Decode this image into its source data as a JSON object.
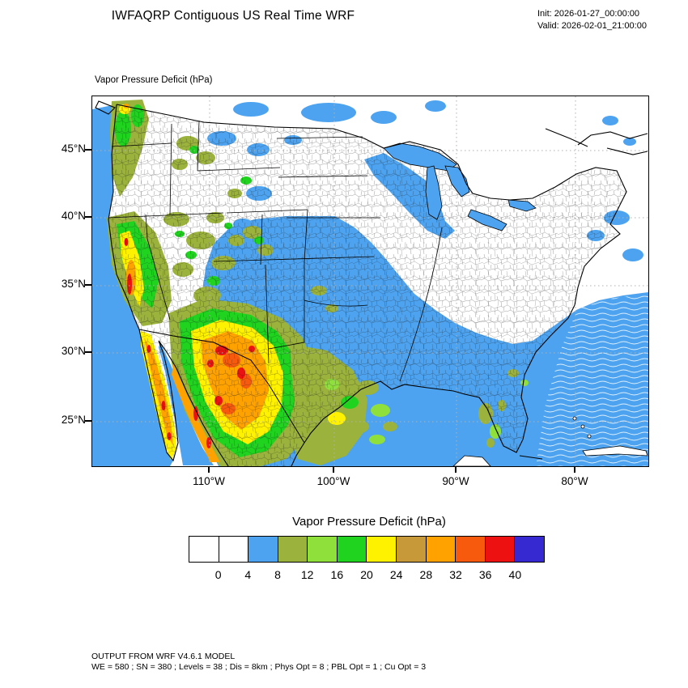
{
  "header": {
    "title": "IWFAQRP Contiguous US Real Time WRF",
    "init_line": "Init: 2026-01-27_00:00:00",
    "valid_line": "Valid: 2026-02-01_21:00:00"
  },
  "map": {
    "field_label": "Vapor Pressure Deficit   (hPa)",
    "lat_ticks": [
      "45°N",
      "40°N",
      "35°N",
      "30°N",
      "25°N"
    ],
    "lon_ticks": [
      "110°W",
      "100°W",
      "90°W",
      "80°W"
    ]
  },
  "colorbar": {
    "title": "Vapor Pressure Deficit  (hPa)",
    "tick_labels": [
      "0",
      "4",
      "8",
      "12",
      "16",
      "20",
      "24",
      "28",
      "32",
      "36",
      "40"
    ],
    "colors": [
      "#ffffff",
      "#ffffff",
      "#4da3f0",
      "#9bb23c",
      "#90e03c",
      "#1fd31f",
      "#fff200",
      "#c79939",
      "#ffa200",
      "#f85a0d",
      "#ee1111",
      "#3629d1"
    ]
  },
  "footer": {
    "line1": "OUTPUT FROM WRF V4.6.1 MODEL",
    "line2": "WE = 580 ; SN = 380 ; Levels = 38 ; Dis = 8km ; Phys Opt = 8 ; PBL Opt = 1 ; Cu Opt = 3"
  },
  "chart_data": {
    "type": "heatmap",
    "title": "IWFAQRP Contiguous US Real Time WRF",
    "field": "Vapor Pressure Deficit",
    "units": "hPa",
    "init_time": "2026-01-27_00:00:00",
    "valid_time": "2026-02-01_21:00:00",
    "x": {
      "label": "longitude",
      "ticks": [
        "110°W",
        "100°W",
        "90°W",
        "80°W"
      ]
    },
    "y": {
      "label": "latitude",
      "ticks": [
        "45°N",
        "40°N",
        "35°N",
        "30°N",
        "25°N"
      ]
    },
    "levels_hpa": [
      0,
      4,
      8,
      12,
      16,
      20,
      24,
      28,
      32,
      36,
      40
    ],
    "palette": [
      "#ffffff",
      "#ffffff",
      "#4da3f0",
      "#9bb23c",
      "#90e03c",
      "#1fd31f",
      "#fff200",
      "#c79939",
      "#ffa200",
      "#f85a0d",
      "#ee1111",
      "#3629d1"
    ],
    "legend_position": "bottom",
    "grid": "dotted gray graticule",
    "basemap": "Contiguous US with county boundaries, northern Mexico, southern Canada",
    "regions_approx": [
      {
        "region": "Upper Midwest / Northern Plains / Northeast US",
        "vpd_hpa": "0-4"
      },
      {
        "region": "Central and Southeast US, Gulf of Mexico, coastal oceans",
        "vpd_hpa": "4-8"
      },
      {
        "region": "Rockies / Great Basin / Pacific Northwest",
        "vpd_hpa": "8-20"
      },
      {
        "region": "California Central Valley",
        "vpd_hpa": "24-36"
      },
      {
        "region": "Arizona / New Mexico / Sonora (northern Mexico)",
        "vpd_hpa": "20-36"
      },
      {
        "region": "Baja California and Gulf of California coast",
        "vpd_hpa": "20-36"
      },
      {
        "region": "West Texas / Chihuahua",
        "vpd_hpa": "8-16"
      },
      {
        "region": "South Texas and Florida interior patches",
        "vpd_hpa": "8-16"
      }
    ],
    "model_info": "OUTPUT FROM WRF V4.6.1 MODEL; WE = 580 ; SN = 380 ; Levels = 38 ; Dis = 8km ; Phys Opt = 8 ; PBL Opt = 1 ; Cu Opt = 3"
  }
}
